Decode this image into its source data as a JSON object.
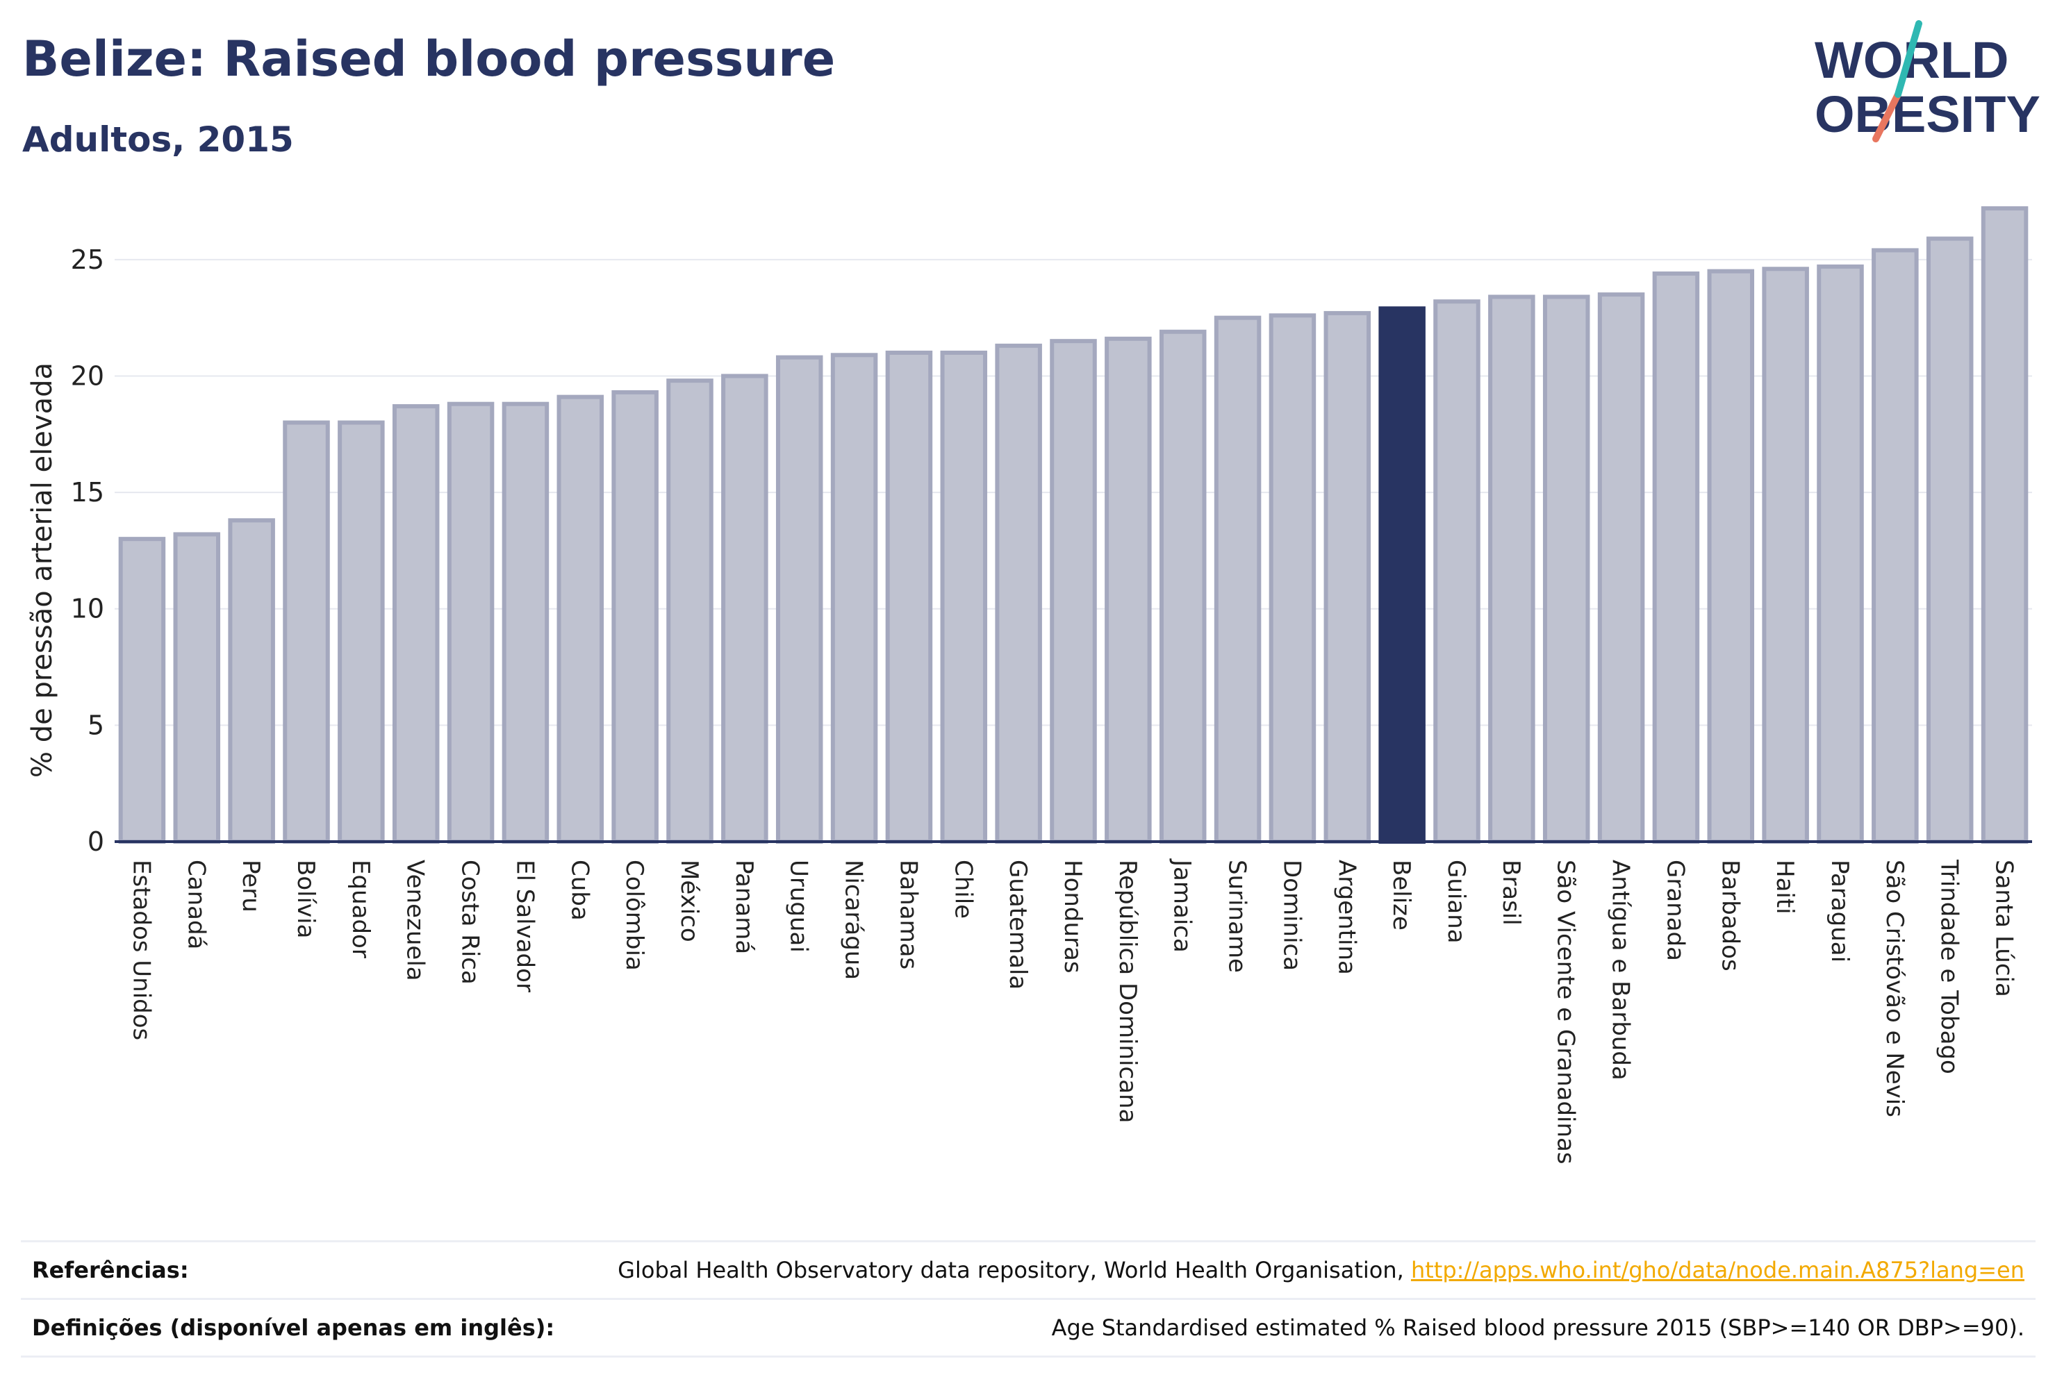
{
  "title": "Belize: Raised blood pressure",
  "subtitle": "Adultos, 2015",
  "logo": {
    "line1": "WORLD",
    "line2": "OBESITY"
  },
  "colors": {
    "navy": "#283462",
    "bar_fill": "#bfc2d0",
    "bar_stroke": "#a4a8be",
    "link": "#f2a900",
    "logo_teal": "#2fb8b2",
    "logo_coral": "#e8765f"
  },
  "chart_data": {
    "type": "bar",
    "ylabel": "% de pressão arterial elevada",
    "ylim": [
      0,
      27.5
    ],
    "yticks": [
      0,
      5,
      10,
      15,
      20,
      25
    ],
    "grid": true,
    "highlight": "Belize",
    "categories": [
      "Estados Unidos",
      "Canadá",
      "Peru",
      "Bolívia",
      "Equador",
      "Venezuela",
      "Costa Rica",
      "El Salvador",
      "Cuba",
      "Colômbia",
      "México",
      "Panamá",
      "Uruguai",
      "Nicarágua",
      "Bahamas",
      "Chile",
      "Guatemala",
      "Honduras",
      "República Dominicana",
      "Jamaica",
      "Suriname",
      "Dominica",
      "Argentina",
      "Belize",
      "Guiana",
      "Brasil",
      "São Vicente e Granadinas",
      "Antígua e Barbuda",
      "Granada",
      "Barbados",
      "Haiti",
      "Paraguai",
      "São Cristóvão e Nevis",
      "Trindade e Tobago",
      "Santa Lúcia"
    ],
    "values": [
      13.0,
      13.2,
      13.8,
      18.0,
      18.0,
      18.7,
      18.8,
      18.8,
      19.1,
      19.3,
      19.8,
      20.0,
      20.8,
      20.9,
      21.0,
      21.0,
      21.3,
      21.5,
      21.6,
      21.9,
      22.5,
      22.6,
      22.7,
      22.9,
      23.2,
      23.4,
      23.4,
      23.5,
      24.4,
      24.5,
      24.6,
      24.7,
      25.4,
      25.9,
      27.2
    ]
  },
  "footer": {
    "refs_label": "Referências:",
    "refs_text": "Global Health Observatory data repository, World Health Organisation, ",
    "refs_link": "http://apps.who.int/gho/data/node.main.A875?lang=en",
    "defs_label": "Definições (disponível apenas em inglês):",
    "defs_text": "Age Standardised estimated % Raised blood pressure 2015 (SBP>=140 OR DBP>=90)."
  }
}
